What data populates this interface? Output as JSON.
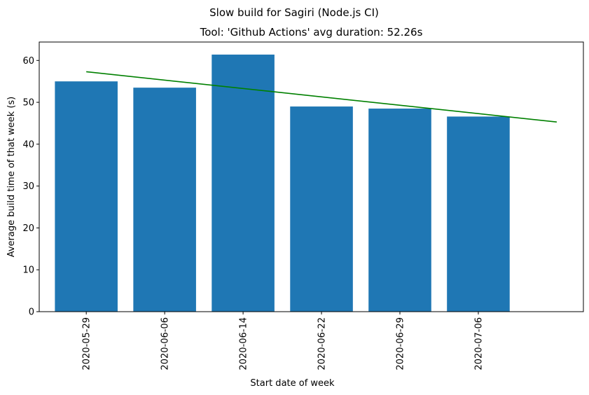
{
  "chart_data": {
    "type": "bar",
    "suptitle": "Slow build for Sagiri (Node.js CI)",
    "title": "Tool: 'Github Actions' avg duration: 52.26s",
    "xlabel": "Start date of week",
    "ylabel": "Average build time of that week (s)",
    "categories": [
      "2020-05-29",
      "2020-06-06",
      "2020-06-14",
      "2020-06-22",
      "2020-06-29",
      "2020-07-06"
    ],
    "values": [
      55.0,
      53.5,
      61.4,
      49.0,
      48.5,
      46.6
    ],
    "ylim": [
      0,
      64.4
    ],
    "yticks": [
      0,
      10,
      20,
      30,
      40,
      50,
      60
    ],
    "bar_color": "#1f77b4",
    "trendline": {
      "color": "#008000",
      "start": [
        0,
        57.3
      ],
      "end": [
        6.0,
        45.3
      ]
    },
    "grid": false,
    "legend": "none"
  }
}
